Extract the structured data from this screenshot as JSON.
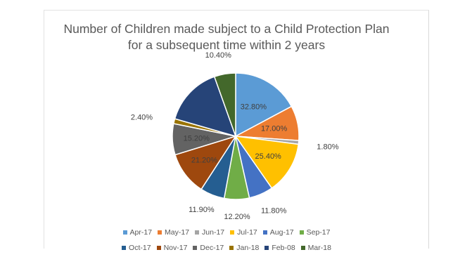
{
  "chart_data": {
    "type": "pie",
    "title_lines": [
      "Number of Children made subject to a Child Protection Plan",
      "for a subsequent time within 2 years"
    ],
    "categories": [
      "Apr-17",
      "May-17",
      "Jun-17",
      "Jul-17",
      "Aug-17",
      "Sep-17",
      "Oct-17",
      "Nov-17",
      "Dec-17",
      "Jan-18",
      "Feb-08",
      "Mar-18"
    ],
    "values": [
      32.8,
      17.0,
      1.8,
      25.4,
      11.8,
      12.2,
      11.9,
      21.2,
      15.2,
      2.4,
      28.8,
      10.4
    ],
    "labels": [
      "32.80%",
      "17.00%",
      "1.80%",
      "25.40%",
      "11.80%",
      "12.20%",
      "11.90%",
      "21.20%",
      "15.20%",
      "2.40%",
      "",
      "10.40%"
    ],
    "colors": [
      "#5B9BD5",
      "#ED7D31",
      "#A5A5A5",
      "#FFC000",
      "#4472C4",
      "#70AD47",
      "#255E91",
      "#9E480E",
      "#636363",
      "#997300",
      "#264478",
      "#43682B"
    ],
    "legend_placement": "bottom"
  }
}
